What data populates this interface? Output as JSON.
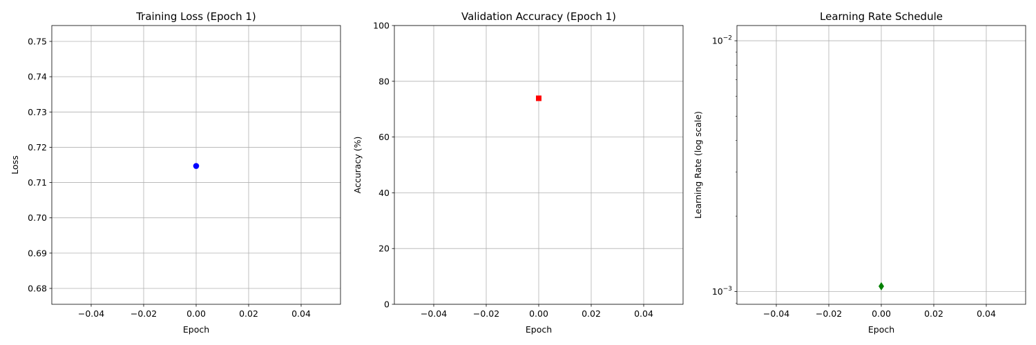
{
  "chart_data": [
    {
      "type": "scatter",
      "title": "Training Loss (Epoch 1)",
      "xlabel": "Epoch",
      "ylabel": "Loss",
      "xlim": [
        -0.055,
        0.055
      ],
      "ylim": [
        0.6755,
        0.7545
      ],
      "yscale": "linear",
      "grid": true,
      "xticks": [
        -0.04,
        -0.02,
        0.0,
        0.02,
        0.04
      ],
      "xtick_labels": [
        "−0.04",
        "−0.02",
        "0.00",
        "0.02",
        "0.04"
      ],
      "yticks": [
        0.68,
        0.69,
        0.7,
        0.71,
        0.72,
        0.73,
        0.74,
        0.75
      ],
      "ytick_labels": [
        "0.68",
        "0.69",
        "0.70",
        "0.71",
        "0.72",
        "0.73",
        "0.74",
        "0.75"
      ],
      "series": [
        {
          "marker": "circle",
          "color": "#0000ff",
          "points": [
            {
              "x": 0.0,
              "y": 0.7147
            }
          ]
        }
      ]
    },
    {
      "type": "scatter",
      "title": "Validation Accuracy (Epoch 1)",
      "xlabel": "Epoch",
      "ylabel": "Accuracy (%)",
      "xlim": [
        -0.055,
        0.055
      ],
      "ylim": [
        0,
        100
      ],
      "yscale": "linear",
      "grid": true,
      "xticks": [
        -0.04,
        -0.02,
        0.0,
        0.02,
        0.04
      ],
      "xtick_labels": [
        "−0.04",
        "−0.02",
        "0.00",
        "0.02",
        "0.04"
      ],
      "yticks": [
        0,
        20,
        40,
        60,
        80,
        100
      ],
      "ytick_labels": [
        "0",
        "20",
        "40",
        "60",
        "80",
        "100"
      ],
      "series": [
        {
          "marker": "square",
          "color": "#ff0000",
          "points": [
            {
              "x": 0.0,
              "y": 73.9
            }
          ]
        }
      ]
    },
    {
      "type": "scatter",
      "title": "Learning Rate Schedule",
      "xlabel": "Epoch",
      "ylabel": "Learning Rate (log scale)",
      "xlim": [
        -0.055,
        0.055
      ],
      "ylim": [
        0.00089,
        0.0115
      ],
      "yscale": "log",
      "grid": true,
      "xticks": [
        -0.04,
        -0.02,
        0.0,
        0.02,
        0.04
      ],
      "xtick_labels": [
        "−0.04",
        "−0.02",
        "0.00",
        "0.02",
        "0.04"
      ],
      "yticks": [
        0.001,
        0.01
      ],
      "ytick_labels": [
        {
          "base": "10",
          "exp": "−3"
        },
        {
          "base": "10",
          "exp": "−2"
        }
      ],
      "series": [
        {
          "marker": "diamond",
          "color": "#008000",
          "points": [
            {
              "x": 0.0,
              "y": 0.00105
            }
          ]
        }
      ]
    }
  ]
}
